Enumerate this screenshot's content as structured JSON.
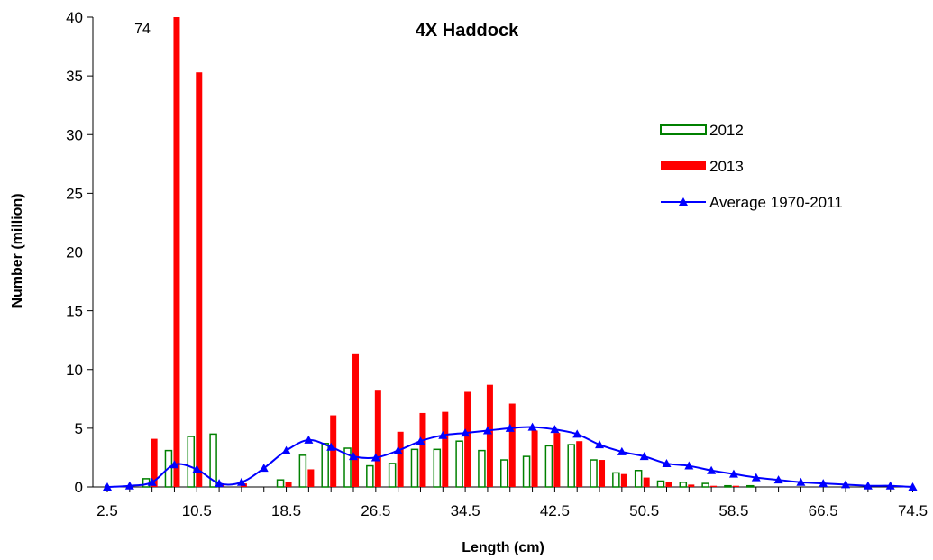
{
  "chart_data": {
    "type": "bar",
    "title": "4X Haddock",
    "xlabel": "Length (cm)",
    "ylabel": "Number (million)",
    "ylim": [
      0,
      40
    ],
    "yticks": [
      0,
      5,
      10,
      15,
      20,
      25,
      30,
      35,
      40
    ],
    "xtick_labels": [
      "2.5",
      "10.5",
      "18.5",
      "26.5",
      "34.5",
      "42.5",
      "50.5",
      "58.5",
      "66.5",
      "74.5"
    ],
    "x": [
      2.5,
      4.5,
      6.5,
      8.5,
      10.5,
      12.5,
      14.5,
      16.5,
      18.5,
      20.5,
      22.5,
      24.5,
      26.5,
      28.5,
      30.5,
      32.5,
      34.5,
      36.5,
      38.5,
      40.5,
      42.5,
      44.5,
      46.5,
      48.5,
      50.5,
      52.5,
      54.5,
      56.5,
      58.5,
      60.5,
      62.5,
      64.5,
      66.5,
      68.5,
      70.5,
      72.5,
      74.5
    ],
    "series": [
      {
        "name": "2012",
        "kind": "bar",
        "style": "outline",
        "color": "#008000",
        "values": [
          0,
          0,
          0.7,
          3.1,
          4.3,
          4.5,
          0,
          0,
          0.6,
          2.7,
          3.7,
          3.3,
          1.8,
          2.0,
          3.2,
          3.2,
          3.9,
          3.1,
          2.3,
          2.6,
          3.5,
          3.6,
          2.3,
          1.2,
          1.4,
          0.5,
          0.4,
          0.3,
          0.1,
          0.1,
          0,
          0,
          0,
          0,
          0,
          0,
          0
        ]
      },
      {
        "name": "2013",
        "kind": "bar",
        "style": "filled",
        "color": "#ff0000",
        "values": [
          0,
          0,
          4.1,
          40,
          35.3,
          0.3,
          0.3,
          0,
          0.4,
          1.5,
          6.1,
          11.3,
          8.2,
          4.7,
          6.3,
          6.4,
          8.1,
          8.7,
          7.1,
          4.8,
          4.6,
          3.9,
          2.3,
          1.1,
          0.8,
          0.4,
          0.2,
          0.1,
          0.1,
          0,
          0,
          0,
          0,
          0,
          0,
          0,
          0
        ]
      },
      {
        "name": "Average 1970-2011",
        "kind": "line",
        "marker": "triangle",
        "color": "#0000ff",
        "values": [
          0,
          0.1,
          0.4,
          1.9,
          1.5,
          0.3,
          0.4,
          1.6,
          3.1,
          4.0,
          3.4,
          2.6,
          2.5,
          3.1,
          3.9,
          4.4,
          4.6,
          4.8,
          5.0,
          5.1,
          4.9,
          4.5,
          3.6,
          3.0,
          2.6,
          2.0,
          1.8,
          1.4,
          1.1,
          0.8,
          0.6,
          0.4,
          0.3,
          0.2,
          0.1,
          0.1,
          0
        ]
      }
    ],
    "annotations": [
      {
        "text": "74"
      }
    ],
    "legend_position": "right",
    "grid": false
  }
}
